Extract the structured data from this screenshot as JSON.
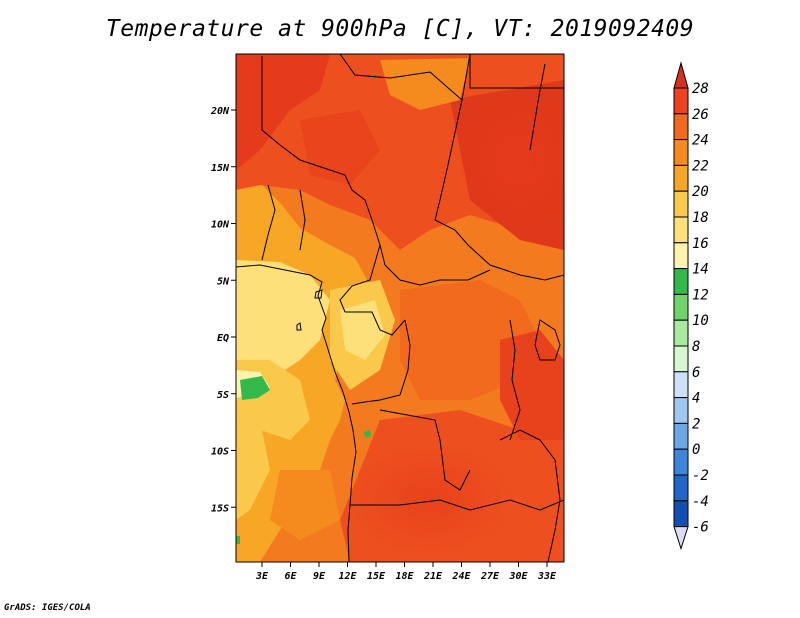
{
  "title": "Temperature at 900hPa [C], VT: 2019092409",
  "footer": "GrADS: IGES/COLA",
  "map": {
    "lon_range": [
      0,
      35
    ],
    "lat_range": [
      -20,
      25
    ],
    "x_ticks": [
      "3E",
      "6E",
      "9E",
      "12E",
      "15E",
      "18E",
      "21E",
      "24E",
      "27E",
      "30E",
      "33E"
    ],
    "y_ticks": [
      "20N",
      "15N",
      "10N",
      "5N",
      "EQ",
      "5S",
      "10S",
      "15S"
    ]
  },
  "colorbar": {
    "levels": [
      "28",
      "26",
      "24",
      "22",
      "20",
      "18",
      "16",
      "14",
      "12",
      "10",
      "8",
      "6",
      "4",
      "2",
      "0",
      "-2",
      "-4",
      "-6"
    ],
    "colors": [
      "#f0421e",
      "#f26a1e",
      "#f58a1f",
      "#f7a626",
      "#fac84a",
      "#fde07a",
      "#fff3ae",
      "#34b84a",
      "#6fd46a",
      "#a6eba0",
      "#d7f7d3",
      "#cde2f7",
      "#9ec8f0",
      "#6aa7e6",
      "#3e85dd",
      "#2166cc",
      "#144fb2",
      "#0c2c84"
    ],
    "top_arrow_color": "#d7301f",
    "bottom_arrow_color": "#dcdcf5"
  }
}
